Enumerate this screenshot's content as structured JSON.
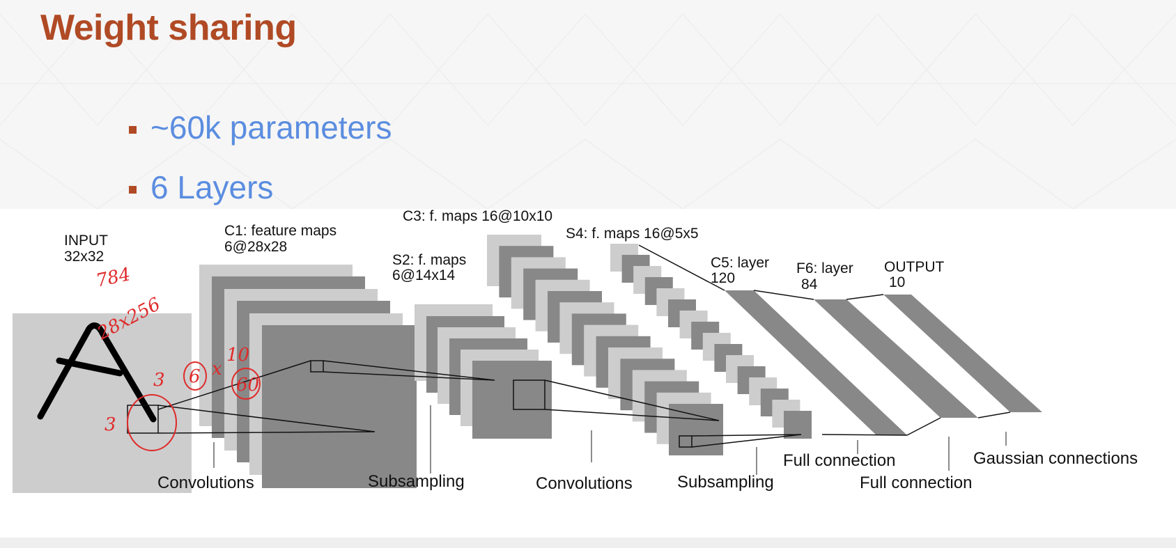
{
  "slide": {
    "title": "Weight sharing",
    "bullets": [
      "~60k parameters",
      "6 Layers"
    ]
  },
  "diagram": {
    "layer_labels": {
      "input": [
        "INPUT",
        "32x32"
      ],
      "c1": [
        "C1: feature maps",
        "6@28x28"
      ],
      "s2": [
        "S2: f. maps",
        "6@14x14"
      ],
      "c3": [
        "C3: f. maps 16@10x10"
      ],
      "s4": [
        "S4: f. maps 16@5x5"
      ],
      "c5": [
        "C5: layer",
        "120"
      ],
      "f6": [
        "F6: layer",
        "84"
      ],
      "output": [
        "OUTPUT",
        "10"
      ]
    },
    "connection_labels": {
      "convolutions_1": "Convolutions",
      "subsampling_1": "Subsampling",
      "convolutions_2": "Convolutions",
      "subsampling_2": "Subsampling",
      "full_connection_1": "Full connection",
      "full_connection_2": "Full connection",
      "gaussian": "Gaussian connections"
    },
    "input_glyph": "A",
    "annotations": [
      "784",
      "28x256",
      "3",
      "3",
      "6",
      "x",
      "10",
      "60"
    ],
    "colors": {
      "title": "#b04a25",
      "bullet_text": "#5b8de0",
      "bullet_marker": "#b04a25",
      "map_light": "#cdcdcd",
      "map_dark": "#888888",
      "annotation_ink": "#e02a2a"
    }
  }
}
